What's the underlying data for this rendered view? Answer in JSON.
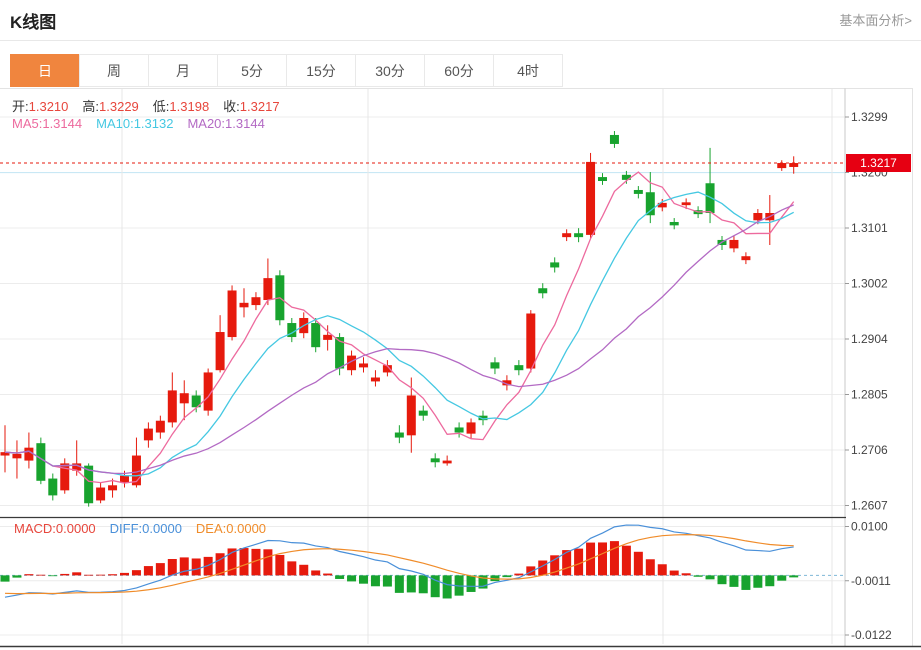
{
  "header": {
    "title": "K线图",
    "link_label": "基本面分析>"
  },
  "tabs": [
    {
      "name": "day",
      "label": "日",
      "active": true
    },
    {
      "name": "week",
      "label": "周",
      "active": false
    },
    {
      "name": "month",
      "label": "月",
      "active": false
    },
    {
      "name": "5min",
      "label": "5分",
      "active": false
    },
    {
      "name": "15min",
      "label": "15分",
      "active": false
    },
    {
      "name": "30min",
      "label": "30分",
      "active": false
    },
    {
      "name": "60min",
      "label": "60分",
      "active": false
    },
    {
      "name": "4hour",
      "label": "4时",
      "active": false
    }
  ],
  "ohlc_legend": [
    {
      "label": "开:",
      "value": "1.3210"
    },
    {
      "label": "高:",
      "value": "1.3229"
    },
    {
      "label": "低:",
      "value": "1.3198"
    },
    {
      "label": "收:",
      "value": "1.3217"
    }
  ],
  "ma_legend": [
    {
      "label": "MA5:",
      "value": "1.3144",
      "color": "#ed6a9e"
    },
    {
      "label": "MA10:",
      "value": "1.3132",
      "color": "#45c8e2"
    },
    {
      "label": "MA20:",
      "value": "1.3144",
      "color": "#b36ac4"
    }
  ],
  "macd_legend": [
    {
      "label": "MACD:",
      "value": "0.0000",
      "color": "#e7463c"
    },
    {
      "label": "DIFF:",
      "value": "0.0000",
      "color": "#4a90d9"
    },
    {
      "label": "DEA:",
      "value": "0.0000",
      "color": "#f08c2a"
    }
  ],
  "price_marker": {
    "value": "1.3217",
    "bg": "#e60012"
  },
  "chart_data": {
    "type": "candlestick",
    "panels": [
      "price",
      "macd"
    ],
    "grid": true,
    "legend_position": "top-left",
    "price_axis": {
      "ticks": [
        "1.3299",
        "1.3200",
        "1.3101",
        "1.3002",
        "1.2904",
        "1.2805",
        "1.2706",
        "1.2607"
      ],
      "max": 1.3299,
      "min": 1.2607
    },
    "macd_axis": {
      "ticks": [
        "0.0100",
        "-0.0011",
        "-0.0122"
      ],
      "max": 0.01,
      "min": -0.0122
    },
    "last_price": 1.3217,
    "up_color": "#e61a0d",
    "down_color": "#18a32e",
    "value_color": "#e7463c",
    "ma": {
      "periods": [
        5,
        10,
        20
      ],
      "colors": [
        "#ed6a9e",
        "#45c8e2",
        "#b36ac4"
      ]
    },
    "diff_color": "#4a90d9",
    "dea_color": "#f08c2a",
    "candles": [
      [
        1.2696,
        1.2702,
        1.2666,
        1.275
      ],
      [
        1.2691,
        1.2699,
        1.2655,
        1.2723
      ],
      [
        1.2687,
        1.271,
        1.2673,
        1.2737
      ],
      [
        1.2718,
        1.2651,
        1.2645,
        1.2728
      ],
      [
        1.2655,
        1.2625,
        1.2616,
        1.2664
      ],
      [
        1.2634,
        1.2682,
        1.2628,
        1.2691
      ],
      [
        1.2669,
        1.2682,
        1.266,
        1.2723
      ],
      [
        1.2678,
        1.2611,
        1.2605,
        1.2682
      ],
      [
        1.2616,
        1.2639,
        1.2611,
        1.2648
      ],
      [
        1.2634,
        1.2643,
        1.2621,
        1.2655
      ],
      [
        1.2648,
        1.266,
        1.2639,
        1.2669
      ],
      [
        1.2643,
        1.2696,
        1.2639,
        1.2728
      ],
      [
        1.2723,
        1.2744,
        1.271,
        1.2755
      ],
      [
        1.2737,
        1.2758,
        1.2726,
        1.2767
      ],
      [
        1.2755,
        1.2812,
        1.2746,
        1.2844
      ],
      [
        1.2789,
        1.2807,
        1.2759,
        1.283
      ],
      [
        1.2803,
        1.2782,
        1.2773,
        1.2812
      ],
      [
        1.2776,
        1.2844,
        1.2767,
        1.2851
      ],
      [
        1.2848,
        1.2916,
        1.2844,
        1.2946
      ],
      [
        1.2907,
        1.299,
        1.2901,
        1.2999
      ],
      [
        1.296,
        1.2968,
        1.2942,
        1.2994
      ],
      [
        1.2964,
        1.2978,
        1.2955,
        1.2987
      ],
      [
        1.2973,
        1.3012,
        1.2964,
        1.3047
      ],
      [
        1.3017,
        1.2937,
        1.2928,
        1.3026
      ],
      [
        1.2932,
        1.2907,
        1.2898,
        1.2941
      ],
      [
        1.2914,
        1.2941,
        1.2905,
        1.2951
      ],
      [
        1.2932,
        1.2889,
        1.288,
        1.2941
      ],
      [
        1.2902,
        1.2911,
        1.2883,
        1.2928
      ],
      [
        1.2907,
        1.2851,
        1.2839,
        1.2914
      ],
      [
        1.2848,
        1.2874,
        1.2839,
        1.2883
      ],
      [
        1.2853,
        1.286,
        1.2844,
        1.2871
      ],
      [
        1.2828,
        1.2835,
        1.2819,
        1.2848
      ],
      [
        1.2844,
        1.2857,
        1.2837,
        1.2866
      ],
      [
        1.2737,
        1.2728,
        1.2718,
        1.275
      ],
      [
        1.2732,
        1.2803,
        1.2701,
        1.2835
      ],
      [
        1.2776,
        1.2767,
        1.2758,
        1.2785
      ],
      [
        1.2691,
        1.2684,
        1.2675,
        1.27
      ],
      [
        1.2682,
        1.2687,
        1.2678,
        1.2696
      ],
      [
        1.2746,
        1.2737,
        1.2728,
        1.2755
      ],
      [
        1.2735,
        1.2755,
        1.2726,
        1.2762
      ],
      [
        1.2767,
        1.2759,
        1.275,
        1.2776
      ],
      [
        1.2862,
        1.2851,
        1.2841,
        1.2871
      ],
      [
        1.2821,
        1.283,
        1.2812,
        1.2839
      ],
      [
        1.2857,
        1.2848,
        1.2839,
        1.2866
      ],
      [
        1.2851,
        1.2949,
        1.2844,
        1.2955
      ],
      [
        1.2994,
        1.2985,
        1.2976,
        1.3003
      ],
      [
        1.304,
        1.3031,
        1.3022,
        1.3049
      ],
      [
        1.3085,
        1.3092,
        1.3078,
        1.3099
      ],
      [
        1.3092,
        1.3085,
        1.3076,
        1.3101
      ],
      [
        1.3089,
        1.3219,
        1.3083,
        1.3235
      ],
      [
        1.3192,
        1.3185,
        1.3178,
        1.3199
      ],
      [
        1.3267,
        1.3251,
        1.3244,
        1.3274
      ],
      [
        1.3196,
        1.3187,
        1.318,
        1.3203
      ],
      [
        1.3169,
        1.3162,
        1.3154,
        1.3176
      ],
      [
        1.3165,
        1.3124,
        1.311,
        1.3201
      ],
      [
        1.3138,
        1.3146,
        1.3131,
        1.3153
      ],
      [
        1.3112,
        1.3106,
        1.3099,
        1.3119
      ],
      [
        1.3142,
        1.3147,
        1.3135,
        1.3154
      ],
      [
        1.3133,
        1.3126,
        1.3119,
        1.314
      ],
      [
        1.3181,
        1.3128,
        1.311,
        1.3244
      ],
      [
        1.308,
        1.3071,
        1.3062,
        1.3087
      ],
      [
        1.3065,
        1.308,
        1.3058,
        1.3087
      ],
      [
        1.3044,
        1.3051,
        1.3037,
        1.3058
      ],
      [
        1.3115,
        1.3128,
        1.3108,
        1.3135
      ],
      [
        1.3115,
        1.3128,
        1.3071,
        1.316
      ],
      [
        1.3208,
        1.3217,
        1.3203,
        1.3222
      ],
      [
        1.321,
        1.3217,
        1.3198,
        1.3229
      ]
    ]
  }
}
